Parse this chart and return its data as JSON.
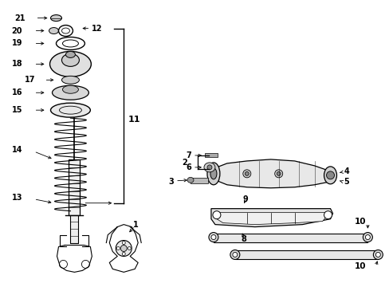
{
  "background_color": "#ffffff",
  "line_color": "#000000",
  "fig_width": 4.89,
  "fig_height": 3.6,
  "dpi": 100,
  "xlim": [
    0,
    489
  ],
  "ylim": [
    0,
    360
  ]
}
